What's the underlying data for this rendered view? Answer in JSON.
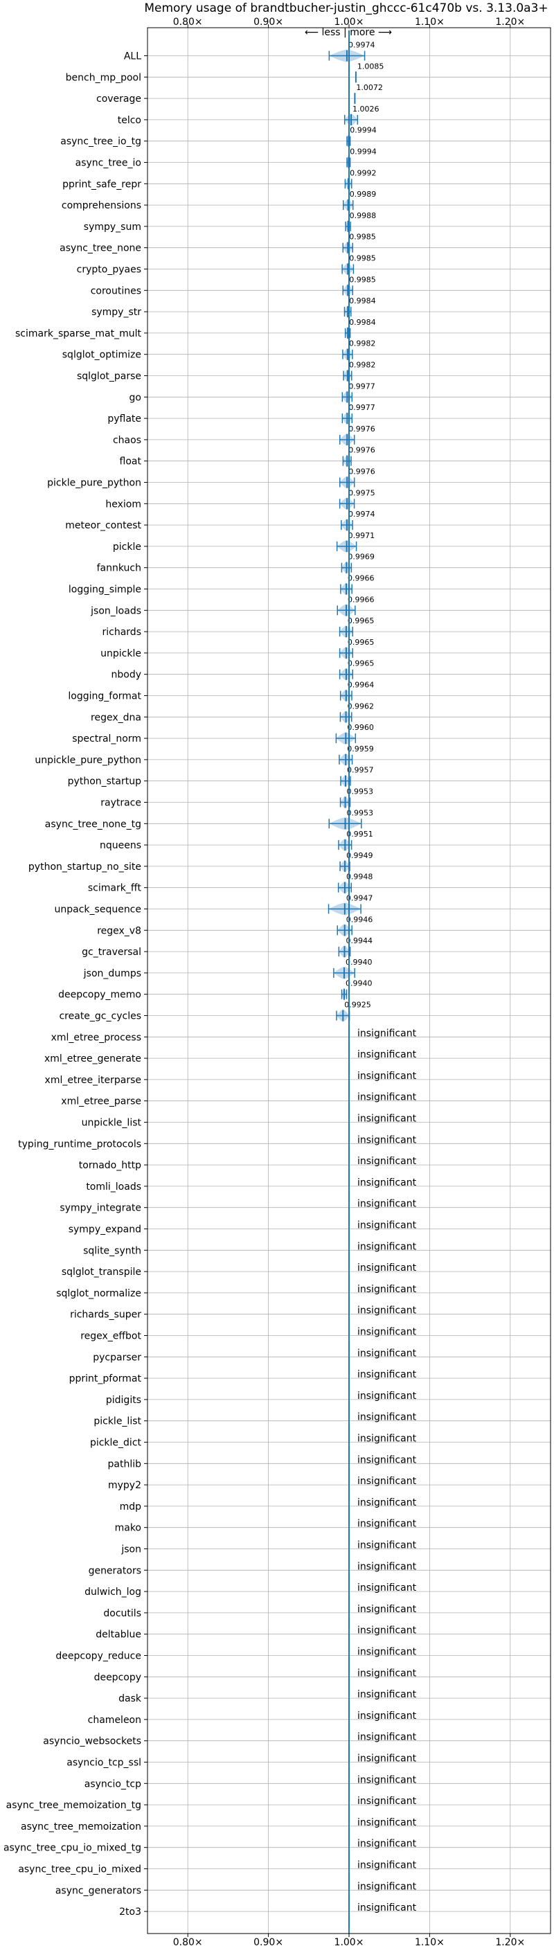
{
  "chart_data": {
    "type": "scatter",
    "title": "Memory usage of brandtbucher-justin_ghccc-61c470b vs. 3.13.0a3+",
    "subtitle": "⟵ less | more ⟶",
    "xlim": [
      0.75,
      1.25
    ],
    "xticks": [
      0.8,
      0.9,
      1.0,
      1.1,
      1.2
    ],
    "xtick_labels": [
      "0.80×",
      "0.90×",
      "1.00×",
      "1.10×",
      "1.20×"
    ],
    "reference_line": 1.0,
    "grid": true,
    "insignificant_label": "insignificant",
    "colors": {
      "marker": "#1f77b4",
      "violin": "#1f77b4",
      "grid": "#b0b0b0",
      "axes": "#000000"
    },
    "benchmarks": [
      {
        "name": "ALL",
        "value": 0.9974,
        "label": "0.9974",
        "spread": 0.022
      },
      {
        "name": "bench_mp_pool",
        "value": 1.0085,
        "label": "1.0085",
        "spread": 0.0
      },
      {
        "name": "coverage",
        "value": 1.0072,
        "label": "1.0072",
        "spread": 0.0
      },
      {
        "name": "telco",
        "value": 1.0026,
        "label": "1.0026",
        "spread": 0.008
      },
      {
        "name": "async_tree_io_tg",
        "value": 0.9994,
        "label": "0.9994",
        "spread": 0.002
      },
      {
        "name": "async_tree_io",
        "value": 0.9994,
        "label": "0.9994",
        "spread": 0.002
      },
      {
        "name": "pprint_safe_repr",
        "value": 0.9992,
        "label": "0.9992",
        "spread": 0.004
      },
      {
        "name": "comprehensions",
        "value": 0.9989,
        "label": "0.9989",
        "spread": 0.006
      },
      {
        "name": "sympy_sum",
        "value": 0.9988,
        "label": "0.9988",
        "spread": 0.003
      },
      {
        "name": "async_tree_none",
        "value": 0.9985,
        "label": "0.9985",
        "spread": 0.006
      },
      {
        "name": "crypto_pyaes",
        "value": 0.9985,
        "label": "0.9985",
        "spread": 0.007
      },
      {
        "name": "coroutines",
        "value": 0.9985,
        "label": "0.9985",
        "spread": 0.006
      },
      {
        "name": "sympy_str",
        "value": 0.9984,
        "label": "0.9984",
        "spread": 0.004
      },
      {
        "name": "scimark_sparse_mat_mult",
        "value": 0.9984,
        "label": "0.9984",
        "spread": 0.003
      },
      {
        "name": "sqlglot_optimize",
        "value": 0.9982,
        "label": "0.9982",
        "spread": 0.006
      },
      {
        "name": "sqlglot_parse",
        "value": 0.9982,
        "label": "0.9982",
        "spread": 0.005
      },
      {
        "name": "go",
        "value": 0.9977,
        "label": "0.9977",
        "spread": 0.006
      },
      {
        "name": "pyflate",
        "value": 0.9977,
        "label": "0.9977",
        "spread": 0.006
      },
      {
        "name": "chaos",
        "value": 0.9976,
        "label": "0.9976",
        "spread": 0.009
      },
      {
        "name": "float",
        "value": 0.9976,
        "label": "0.9976",
        "spread": 0.005
      },
      {
        "name": "pickle_pure_python",
        "value": 0.9976,
        "label": "0.9976",
        "spread": 0.009
      },
      {
        "name": "hexiom",
        "value": 0.9975,
        "label": "0.9975",
        "spread": 0.009
      },
      {
        "name": "meteor_contest",
        "value": 0.9974,
        "label": "0.9974",
        "spread": 0.007
      },
      {
        "name": "pickle",
        "value": 0.9971,
        "label": "0.9971",
        "spread": 0.012
      },
      {
        "name": "fannkuch",
        "value": 0.9969,
        "label": "0.9969",
        "spread": 0.006
      },
      {
        "name": "logging_simple",
        "value": 0.9966,
        "label": "0.9966",
        "spread": 0.007
      },
      {
        "name": "json_loads",
        "value": 0.9966,
        "label": "0.9966",
        "spread": 0.011
      },
      {
        "name": "richards",
        "value": 0.9965,
        "label": "0.9965",
        "spread": 0.008
      },
      {
        "name": "unpickle",
        "value": 0.9965,
        "label": "0.9965",
        "spread": 0.008
      },
      {
        "name": "nbody",
        "value": 0.9965,
        "label": "0.9965",
        "spread": 0.008
      },
      {
        "name": "logging_format",
        "value": 0.9964,
        "label": "0.9964",
        "spread": 0.007
      },
      {
        "name": "regex_dna",
        "value": 0.9962,
        "label": "0.9962",
        "spread": 0.007
      },
      {
        "name": "spectral_norm",
        "value": 0.996,
        "label": "0.9960",
        "spread": 0.012
      },
      {
        "name": "unpickle_pure_python",
        "value": 0.9959,
        "label": "0.9959",
        "spread": 0.008
      },
      {
        "name": "python_startup",
        "value": 0.9957,
        "label": "0.9957",
        "spread": 0.006
      },
      {
        "name": "raytrace",
        "value": 0.9953,
        "label": "0.9953",
        "spread": 0.006
      },
      {
        "name": "async_tree_none_tg",
        "value": 0.9953,
        "label": "0.9953",
        "spread": 0.02
      },
      {
        "name": "nqueens",
        "value": 0.9951,
        "label": "0.9951",
        "spread": 0.008
      },
      {
        "name": "python_startup_no_site",
        "value": 0.9949,
        "label": "0.9949",
        "spread": 0.006
      },
      {
        "name": "scimark_fft",
        "value": 0.9948,
        "label": "0.9948",
        "spread": 0.008
      },
      {
        "name": "unpack_sequence",
        "value": 0.9947,
        "label": "0.9947",
        "spread": 0.02
      },
      {
        "name": "regex_v8",
        "value": 0.9946,
        "label": "0.9946",
        "spread": 0.009
      },
      {
        "name": "gc_traversal",
        "value": 0.9944,
        "label": "0.9944",
        "spread": 0.007
      },
      {
        "name": "json_dumps",
        "value": 0.994,
        "label": "0.9940",
        "spread": 0.013
      },
      {
        "name": "deepcopy_memo",
        "value": 0.994,
        "label": "0.9940",
        "spread": 0.003
      },
      {
        "name": "create_gc_cycles",
        "value": 0.9925,
        "label": "0.9925",
        "spread": 0.008
      },
      {
        "name": "xml_etree_process",
        "value": null,
        "label": "insignificant",
        "spread": 0
      },
      {
        "name": "xml_etree_generate",
        "value": null,
        "label": "insignificant",
        "spread": 0
      },
      {
        "name": "xml_etree_iterparse",
        "value": null,
        "label": "insignificant",
        "spread": 0
      },
      {
        "name": "xml_etree_parse",
        "value": null,
        "label": "insignificant",
        "spread": 0
      },
      {
        "name": "unpickle_list",
        "value": null,
        "label": "insignificant",
        "spread": 0
      },
      {
        "name": "typing_runtime_protocols",
        "value": null,
        "label": "insignificant",
        "spread": 0
      },
      {
        "name": "tornado_http",
        "value": null,
        "label": "insignificant",
        "spread": 0
      },
      {
        "name": "tomli_loads",
        "value": null,
        "label": "insignificant",
        "spread": 0
      },
      {
        "name": "sympy_integrate",
        "value": null,
        "label": "insignificant",
        "spread": 0
      },
      {
        "name": "sympy_expand",
        "value": null,
        "label": "insignificant",
        "spread": 0
      },
      {
        "name": "sqlite_synth",
        "value": null,
        "label": "insignificant",
        "spread": 0
      },
      {
        "name": "sqlglot_transpile",
        "value": null,
        "label": "insignificant",
        "spread": 0
      },
      {
        "name": "sqlglot_normalize",
        "value": null,
        "label": "insignificant",
        "spread": 0
      },
      {
        "name": "richards_super",
        "value": null,
        "label": "insignificant",
        "spread": 0
      },
      {
        "name": "regex_effbot",
        "value": null,
        "label": "insignificant",
        "spread": 0
      },
      {
        "name": "pycparser",
        "value": null,
        "label": "insignificant",
        "spread": 0
      },
      {
        "name": "pprint_pformat",
        "value": null,
        "label": "insignificant",
        "spread": 0
      },
      {
        "name": "pidigits",
        "value": null,
        "label": "insignificant",
        "spread": 0
      },
      {
        "name": "pickle_list",
        "value": null,
        "label": "insignificant",
        "spread": 0
      },
      {
        "name": "pickle_dict",
        "value": null,
        "label": "insignificant",
        "spread": 0
      },
      {
        "name": "pathlib",
        "value": null,
        "label": "insignificant",
        "spread": 0
      },
      {
        "name": "mypy2",
        "value": null,
        "label": "insignificant",
        "spread": 0
      },
      {
        "name": "mdp",
        "value": null,
        "label": "insignificant",
        "spread": 0
      },
      {
        "name": "mako",
        "value": null,
        "label": "insignificant",
        "spread": 0
      },
      {
        "name": "json",
        "value": null,
        "label": "insignificant",
        "spread": 0
      },
      {
        "name": "generators",
        "value": null,
        "label": "insignificant",
        "spread": 0
      },
      {
        "name": "dulwich_log",
        "value": null,
        "label": "insignificant",
        "spread": 0
      },
      {
        "name": "docutils",
        "value": null,
        "label": "insignificant",
        "spread": 0
      },
      {
        "name": "deltablue",
        "value": null,
        "label": "insignificant",
        "spread": 0
      },
      {
        "name": "deepcopy_reduce",
        "value": null,
        "label": "insignificant",
        "spread": 0
      },
      {
        "name": "deepcopy",
        "value": null,
        "label": "insignificant",
        "spread": 0
      },
      {
        "name": "dask",
        "value": null,
        "label": "insignificant",
        "spread": 0
      },
      {
        "name": "chameleon",
        "value": null,
        "label": "insignificant",
        "spread": 0
      },
      {
        "name": "asyncio_websockets",
        "value": null,
        "label": "insignificant",
        "spread": 0
      },
      {
        "name": "asyncio_tcp_ssl",
        "value": null,
        "label": "insignificant",
        "spread": 0
      },
      {
        "name": "asyncio_tcp",
        "value": null,
        "label": "insignificant",
        "spread": 0
      },
      {
        "name": "async_tree_memoization_tg",
        "value": null,
        "label": "insignificant",
        "spread": 0
      },
      {
        "name": "async_tree_memoization",
        "value": null,
        "label": "insignificant",
        "spread": 0
      },
      {
        "name": "async_tree_cpu_io_mixed_tg",
        "value": null,
        "label": "insignificant",
        "spread": 0
      },
      {
        "name": "async_tree_cpu_io_mixed",
        "value": null,
        "label": "insignificant",
        "spread": 0
      },
      {
        "name": "async_generators",
        "value": null,
        "label": "insignificant",
        "spread": 0
      },
      {
        "name": "2to3",
        "value": null,
        "label": "insignificant",
        "spread": 0
      }
    ]
  }
}
